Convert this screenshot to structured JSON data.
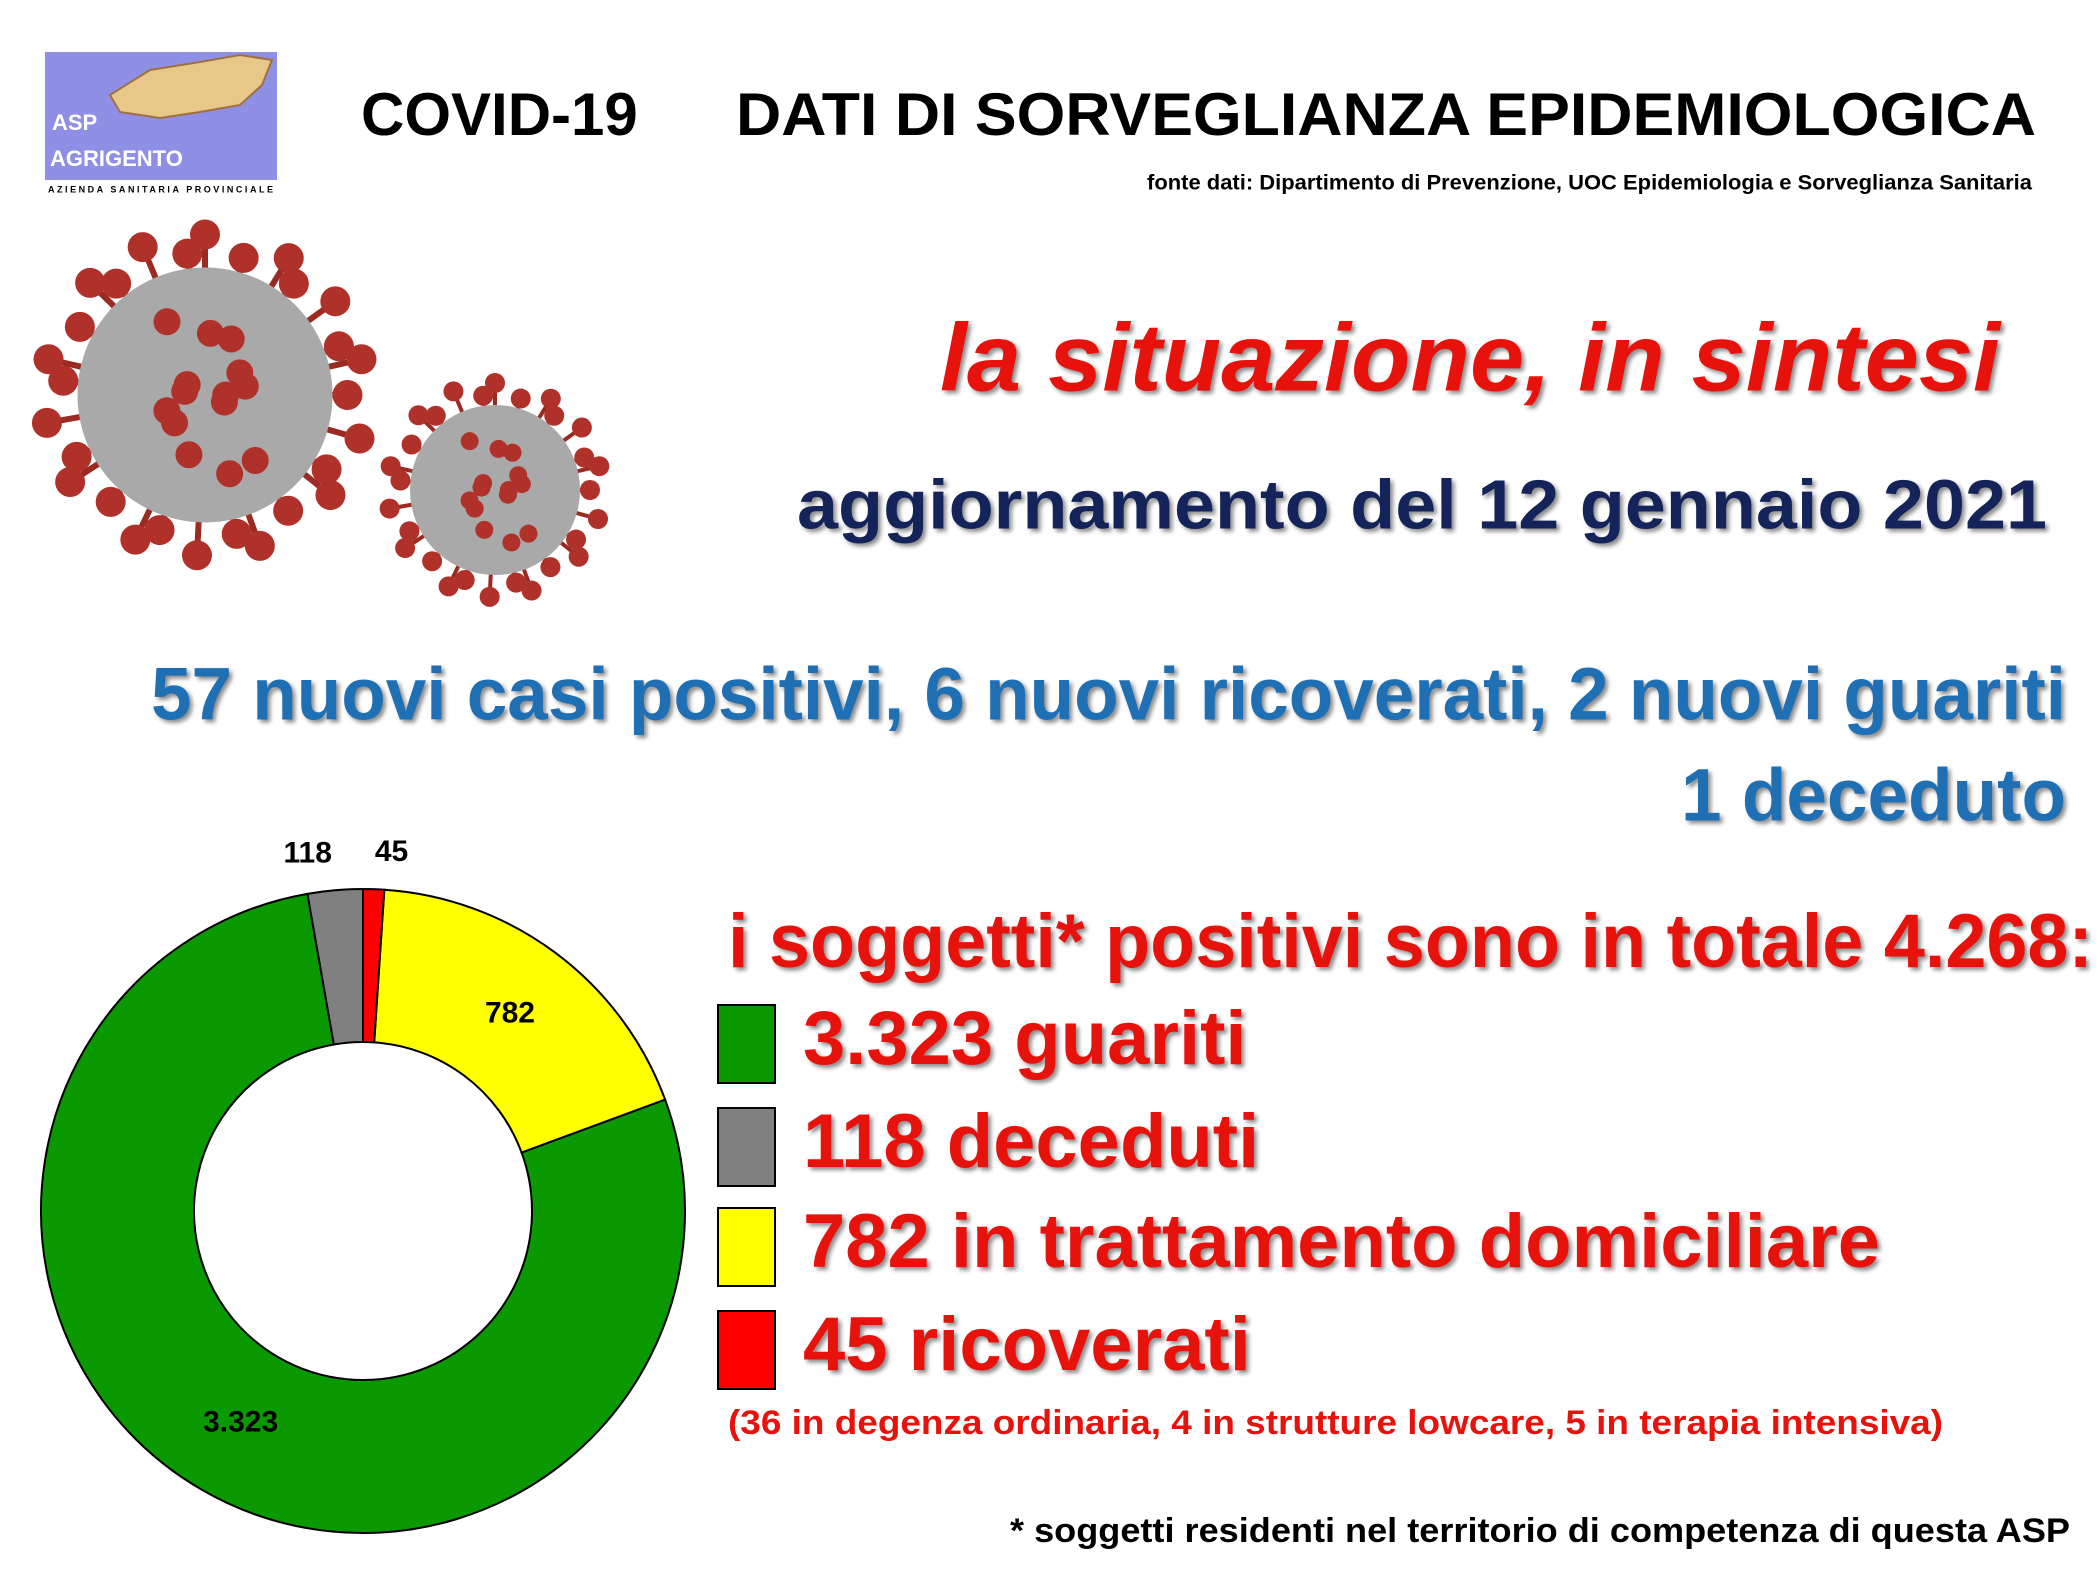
{
  "header": {
    "logo": [
      "ASP",
      "AGRIGENTO",
      "AZIENDA SANITARIA PROVINCIALE"
    ],
    "title_left": "COVID-19",
    "title_right": "DATI DI SORVEGLIANZA EPIDEMIOLOGICA",
    "source": "fonte dati: Dipartimento di Prevenzione, UOC Epidemiologia e Sorveglianza Sanitaria"
  },
  "headline": "la situazione, in sintesi",
  "update": "aggiornamento del 12 gennaio 2021",
  "news": [
    "57 nuovi casi positivi, 6 nuovi ricoverati, 2 nuovi guariti",
    "1 deceduto"
  ],
  "total": "i soggetti* positivi sono in totale 4.268:",
  "note": "(36 in degenza ordinaria, 4 in strutture lowcare, 5 in terapia intensiva)",
  "footnote": "* soggetti residenti nel territorio di competenza di questa ASP",
  "chart_data": {
    "type": "donut",
    "categories": [
      "3.323 guariti",
      "118 deceduti",
      "782 in trattamento domiciliare",
      "45 ricoverati"
    ],
    "values": [
      3323,
      118,
      782,
      45
    ],
    "value_labels": [
      "3.323",
      "118",
      "782",
      "45"
    ],
    "colors": [
      "#0a9900",
      "#808080",
      "#ffff00",
      "#ff0000"
    ]
  }
}
